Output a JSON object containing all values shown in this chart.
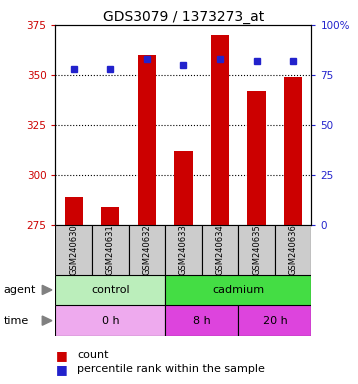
{
  "title": "GDS3079 / 1373273_at",
  "samples": [
    "GSM240630",
    "GSM240631",
    "GSM240632",
    "GSM240633",
    "GSM240634",
    "GSM240635",
    "GSM240636"
  ],
  "counts": [
    289,
    284,
    360,
    312,
    370,
    342,
    349
  ],
  "percentiles": [
    78,
    78,
    83,
    80,
    83,
    82,
    82
  ],
  "ylim_left": [
    275,
    375
  ],
  "ylim_right": [
    0,
    100
  ],
  "yticks_left": [
    275,
    300,
    325,
    350,
    375
  ],
  "yticks_right": [
    0,
    25,
    50,
    75,
    100
  ],
  "bar_color": "#cc0000",
  "dot_color": "#2222cc",
  "agent_groups": [
    {
      "label": "control",
      "start": 0,
      "end": 3,
      "color": "#bbeebb"
    },
    {
      "label": "cadmium",
      "start": 3,
      "end": 7,
      "color": "#44dd44"
    }
  ],
  "time_groups": [
    {
      "label": "0 h",
      "start": 0,
      "end": 3,
      "color": "#eeaaee"
    },
    {
      "label": "8 h",
      "start": 3,
      "end": 5,
      "color": "#dd44dd"
    },
    {
      "label": "20 h",
      "start": 5,
      "end": 7,
      "color": "#dd44dd"
    }
  ],
  "grid_color": "#000000",
  "background_color": "#ffffff",
  "left_axis_color": "#cc0000",
  "right_axis_color": "#2222cc",
  "sample_bg_color": "#cccccc"
}
